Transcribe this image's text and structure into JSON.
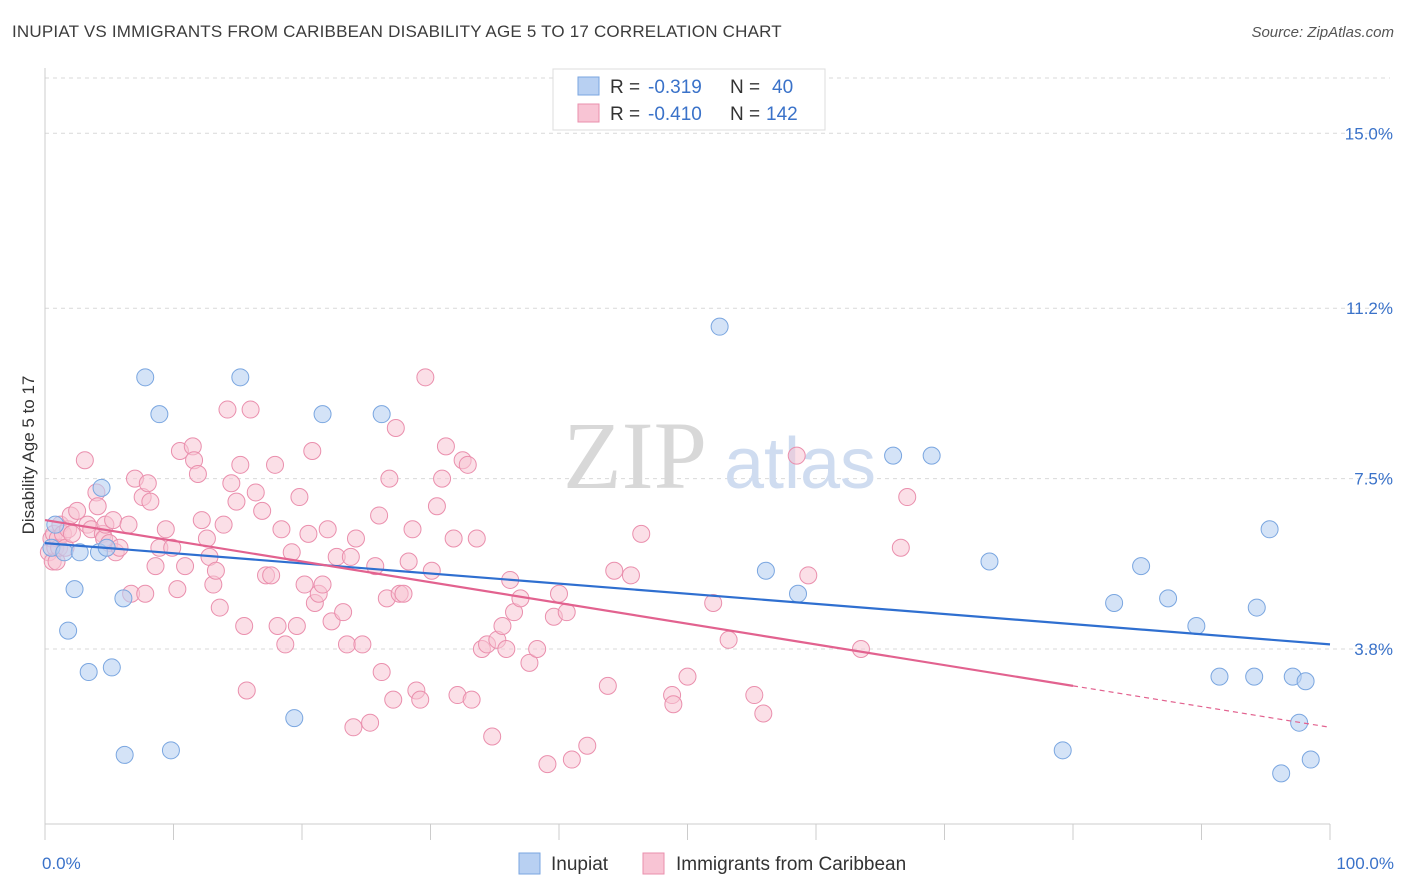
{
  "header": {
    "title": "INUPIAT VS IMMIGRANTS FROM CARIBBEAN DISABILITY AGE 5 TO 17 CORRELATION CHART",
    "source": "Source: ZipAtlas.com"
  },
  "watermark": {
    "zip": "ZIP",
    "atlas": "atlas"
  },
  "stats": [
    {
      "r_label": "R =",
      "r_value": "-0.319",
      "n_label": "N =",
      "n_value": "40"
    },
    {
      "r_label": "R =",
      "r_value": "-0.410",
      "n_label": "N =",
      "n_value": "142"
    }
  ],
  "colors": {
    "inupiat_fill": "#b8d0f2",
    "inupiat_stroke": "#7aa6e0",
    "inupiat_line": "#2f6fd0",
    "carib_fill": "#f8c4d4",
    "carib_stroke": "#ea8fad",
    "carib_line": "#e2628f",
    "grid": "#d9d9d9",
    "value_text": "#3a72c9"
  },
  "chart_data": {
    "type": "scatter",
    "xlabel": "",
    "ylabel": "Disability Age 5 to 17",
    "xlim": [
      0,
      100
    ],
    "ylim": [
      0,
      16.2
    ],
    "x_tick_labels": [
      "0.0%",
      "100.0%"
    ],
    "y_ticks": [
      3.8,
      7.5,
      11.2,
      15.0
    ],
    "y_tick_labels": [
      "3.8%",
      "7.5%",
      "11.2%",
      "15.0%"
    ],
    "grid": "horizontal dashed",
    "legend_position": "bottom-center",
    "series": [
      {
        "name": "Inupiat",
        "r": -0.319,
        "n": 40,
        "trend": {
          "x": [
            0,
            100
          ],
          "y": [
            6.1,
            3.9
          ]
        },
        "points": [
          [
            0.5,
            6.0
          ],
          [
            0.8,
            6.5
          ],
          [
            1.5,
            5.9
          ],
          [
            1.8,
            4.2
          ],
          [
            2.3,
            5.1
          ],
          [
            2.7,
            5.9
          ],
          [
            3.4,
            3.3
          ],
          [
            4.2,
            5.9
          ],
          [
            4.4,
            7.3
          ],
          [
            4.8,
            6.0
          ],
          [
            5.2,
            3.4
          ],
          [
            6.1,
            4.9
          ],
          [
            6.2,
            1.5
          ],
          [
            7.8,
            9.7
          ],
          [
            8.9,
            8.9
          ],
          [
            9.8,
            1.6
          ],
          [
            15.2,
            9.7
          ],
          [
            19.4,
            2.3
          ],
          [
            21.6,
            8.9
          ],
          [
            26.2,
            8.9
          ],
          [
            52.5,
            10.8
          ],
          [
            56.1,
            5.5
          ],
          [
            58.6,
            5.0
          ],
          [
            66.0,
            8.0
          ],
          [
            69.0,
            8.0
          ],
          [
            73.5,
            5.7
          ],
          [
            79.2,
            1.6
          ],
          [
            83.2,
            4.8
          ],
          [
            85.3,
            5.6
          ],
          [
            87.4,
            4.9
          ],
          [
            89.6,
            4.3
          ],
          [
            91.4,
            3.2
          ],
          [
            94.1,
            3.2
          ],
          [
            94.3,
            4.7
          ],
          [
            95.3,
            6.4
          ],
          [
            96.2,
            1.1
          ],
          [
            97.1,
            3.2
          ],
          [
            97.6,
            2.2
          ],
          [
            98.1,
            3.1
          ],
          [
            98.5,
            1.4
          ]
        ]
      },
      {
        "name": "Immigrants from Caribbean",
        "r": -0.41,
        "n": 142,
        "trend": {
          "x": [
            0,
            80
          ],
          "y": [
            6.6,
            3.0
          ]
        },
        "trend_dashed": {
          "x": [
            80,
            100
          ],
          "y": [
            3.0,
            2.1
          ]
        },
        "points": [
          [
            0.3,
            5.9
          ],
          [
            0.5,
            6.2
          ],
          [
            0.6,
            5.7
          ],
          [
            0.7,
            6.3
          ],
          [
            0.8,
            6.0
          ],
          [
            0.9,
            5.7
          ],
          [
            1.0,
            6.2
          ],
          [
            1.1,
            6.0
          ],
          [
            1.2,
            6.5
          ],
          [
            1.4,
            6.3
          ],
          [
            1.6,
            6.0
          ],
          [
            1.8,
            6.4
          ],
          [
            2.0,
            6.7
          ],
          [
            2.1,
            6.3
          ],
          [
            2.5,
            6.8
          ],
          [
            3.1,
            7.9
          ],
          [
            3.3,
            6.5
          ],
          [
            3.6,
            6.4
          ],
          [
            4.0,
            7.2
          ],
          [
            4.1,
            6.9
          ],
          [
            4.5,
            6.3
          ],
          [
            4.6,
            6.2
          ],
          [
            4.7,
            6.5
          ],
          [
            5.0,
            6.1
          ],
          [
            5.3,
            6.6
          ],
          [
            5.5,
            5.9
          ],
          [
            5.8,
            6.0
          ],
          [
            6.5,
            6.5
          ],
          [
            6.7,
            5.0
          ],
          [
            7.0,
            7.5
          ],
          [
            7.6,
            7.1
          ],
          [
            7.8,
            5.0
          ],
          [
            8.0,
            7.4
          ],
          [
            8.2,
            7.0
          ],
          [
            8.6,
            5.6
          ],
          [
            8.9,
            6.0
          ],
          [
            9.4,
            6.4
          ],
          [
            9.9,
            6.0
          ],
          [
            10.3,
            5.1
          ],
          [
            10.5,
            8.1
          ],
          [
            10.9,
            5.6
          ],
          [
            11.5,
            8.2
          ],
          [
            11.6,
            7.9
          ],
          [
            11.9,
            7.6
          ],
          [
            12.2,
            6.6
          ],
          [
            12.6,
            6.2
          ],
          [
            12.8,
            5.8
          ],
          [
            13.1,
            5.2
          ],
          [
            13.3,
            5.5
          ],
          [
            13.6,
            4.7
          ],
          [
            13.9,
            6.5
          ],
          [
            14.2,
            9.0
          ],
          [
            14.5,
            7.4
          ],
          [
            14.9,
            7.0
          ],
          [
            15.2,
            7.8
          ],
          [
            15.5,
            4.3
          ],
          [
            15.7,
            2.9
          ],
          [
            16.0,
            9.0
          ],
          [
            16.4,
            7.2
          ],
          [
            16.9,
            6.8
          ],
          [
            17.2,
            5.4
          ],
          [
            17.6,
            5.4
          ],
          [
            17.9,
            7.8
          ],
          [
            18.1,
            4.3
          ],
          [
            18.4,
            6.4
          ],
          [
            18.7,
            3.9
          ],
          [
            19.2,
            5.9
          ],
          [
            19.6,
            4.3
          ],
          [
            19.8,
            7.1
          ],
          [
            20.2,
            5.2
          ],
          [
            20.5,
            6.3
          ],
          [
            20.8,
            8.1
          ],
          [
            21.0,
            4.8
          ],
          [
            21.3,
            5.0
          ],
          [
            21.6,
            5.2
          ],
          [
            22.0,
            6.4
          ],
          [
            22.3,
            4.4
          ],
          [
            22.7,
            5.8
          ],
          [
            23.2,
            4.6
          ],
          [
            23.5,
            3.9
          ],
          [
            23.8,
            5.8
          ],
          [
            24.0,
            2.1
          ],
          [
            24.2,
            6.2
          ],
          [
            24.7,
            3.9
          ],
          [
            25.3,
            2.2
          ],
          [
            25.7,
            5.6
          ],
          [
            26.0,
            6.7
          ],
          [
            26.2,
            3.3
          ],
          [
            26.6,
            4.9
          ],
          [
            26.8,
            7.5
          ],
          [
            27.1,
            2.7
          ],
          [
            27.3,
            8.6
          ],
          [
            27.6,
            5.0
          ],
          [
            27.9,
            5.0
          ],
          [
            28.3,
            5.7
          ],
          [
            28.6,
            6.4
          ],
          [
            28.9,
            2.9
          ],
          [
            29.2,
            2.7
          ],
          [
            29.6,
            9.7
          ],
          [
            30.1,
            5.5
          ],
          [
            30.5,
            6.9
          ],
          [
            30.9,
            7.5
          ],
          [
            31.2,
            8.2
          ],
          [
            31.8,
            6.2
          ],
          [
            32.1,
            2.8
          ],
          [
            32.5,
            7.9
          ],
          [
            32.9,
            7.8
          ],
          [
            33.2,
            2.7
          ],
          [
            33.6,
            6.2
          ],
          [
            34.0,
            3.8
          ],
          [
            34.4,
            3.9
          ],
          [
            34.8,
            1.9
          ],
          [
            35.2,
            4.0
          ],
          [
            35.6,
            4.3
          ],
          [
            35.9,
            3.8
          ],
          [
            36.2,
            5.3
          ],
          [
            36.5,
            4.6
          ],
          [
            37.0,
            4.9
          ],
          [
            37.7,
            3.5
          ],
          [
            38.3,
            3.8
          ],
          [
            39.1,
            1.3
          ],
          [
            39.6,
            4.5
          ],
          [
            40.0,
            5.0
          ],
          [
            40.6,
            4.6
          ],
          [
            41.0,
            1.4
          ],
          [
            42.2,
            1.7
          ],
          [
            43.8,
            3.0
          ],
          [
            44.3,
            5.5
          ],
          [
            45.6,
            5.4
          ],
          [
            46.4,
            6.3
          ],
          [
            48.8,
            2.8
          ],
          [
            48.9,
            2.6
          ],
          [
            50.0,
            3.2
          ],
          [
            52.0,
            4.8
          ],
          [
            53.2,
            4.0
          ],
          [
            55.2,
            2.8
          ],
          [
            55.9,
            2.4
          ],
          [
            58.5,
            8.0
          ],
          [
            59.4,
            5.4
          ],
          [
            63.5,
            3.8
          ],
          [
            66.6,
            6.0
          ],
          [
            67.1,
            7.1
          ]
        ]
      }
    ]
  },
  "legend": {
    "items": [
      "Inupiat",
      "Immigrants from Caribbean"
    ]
  }
}
